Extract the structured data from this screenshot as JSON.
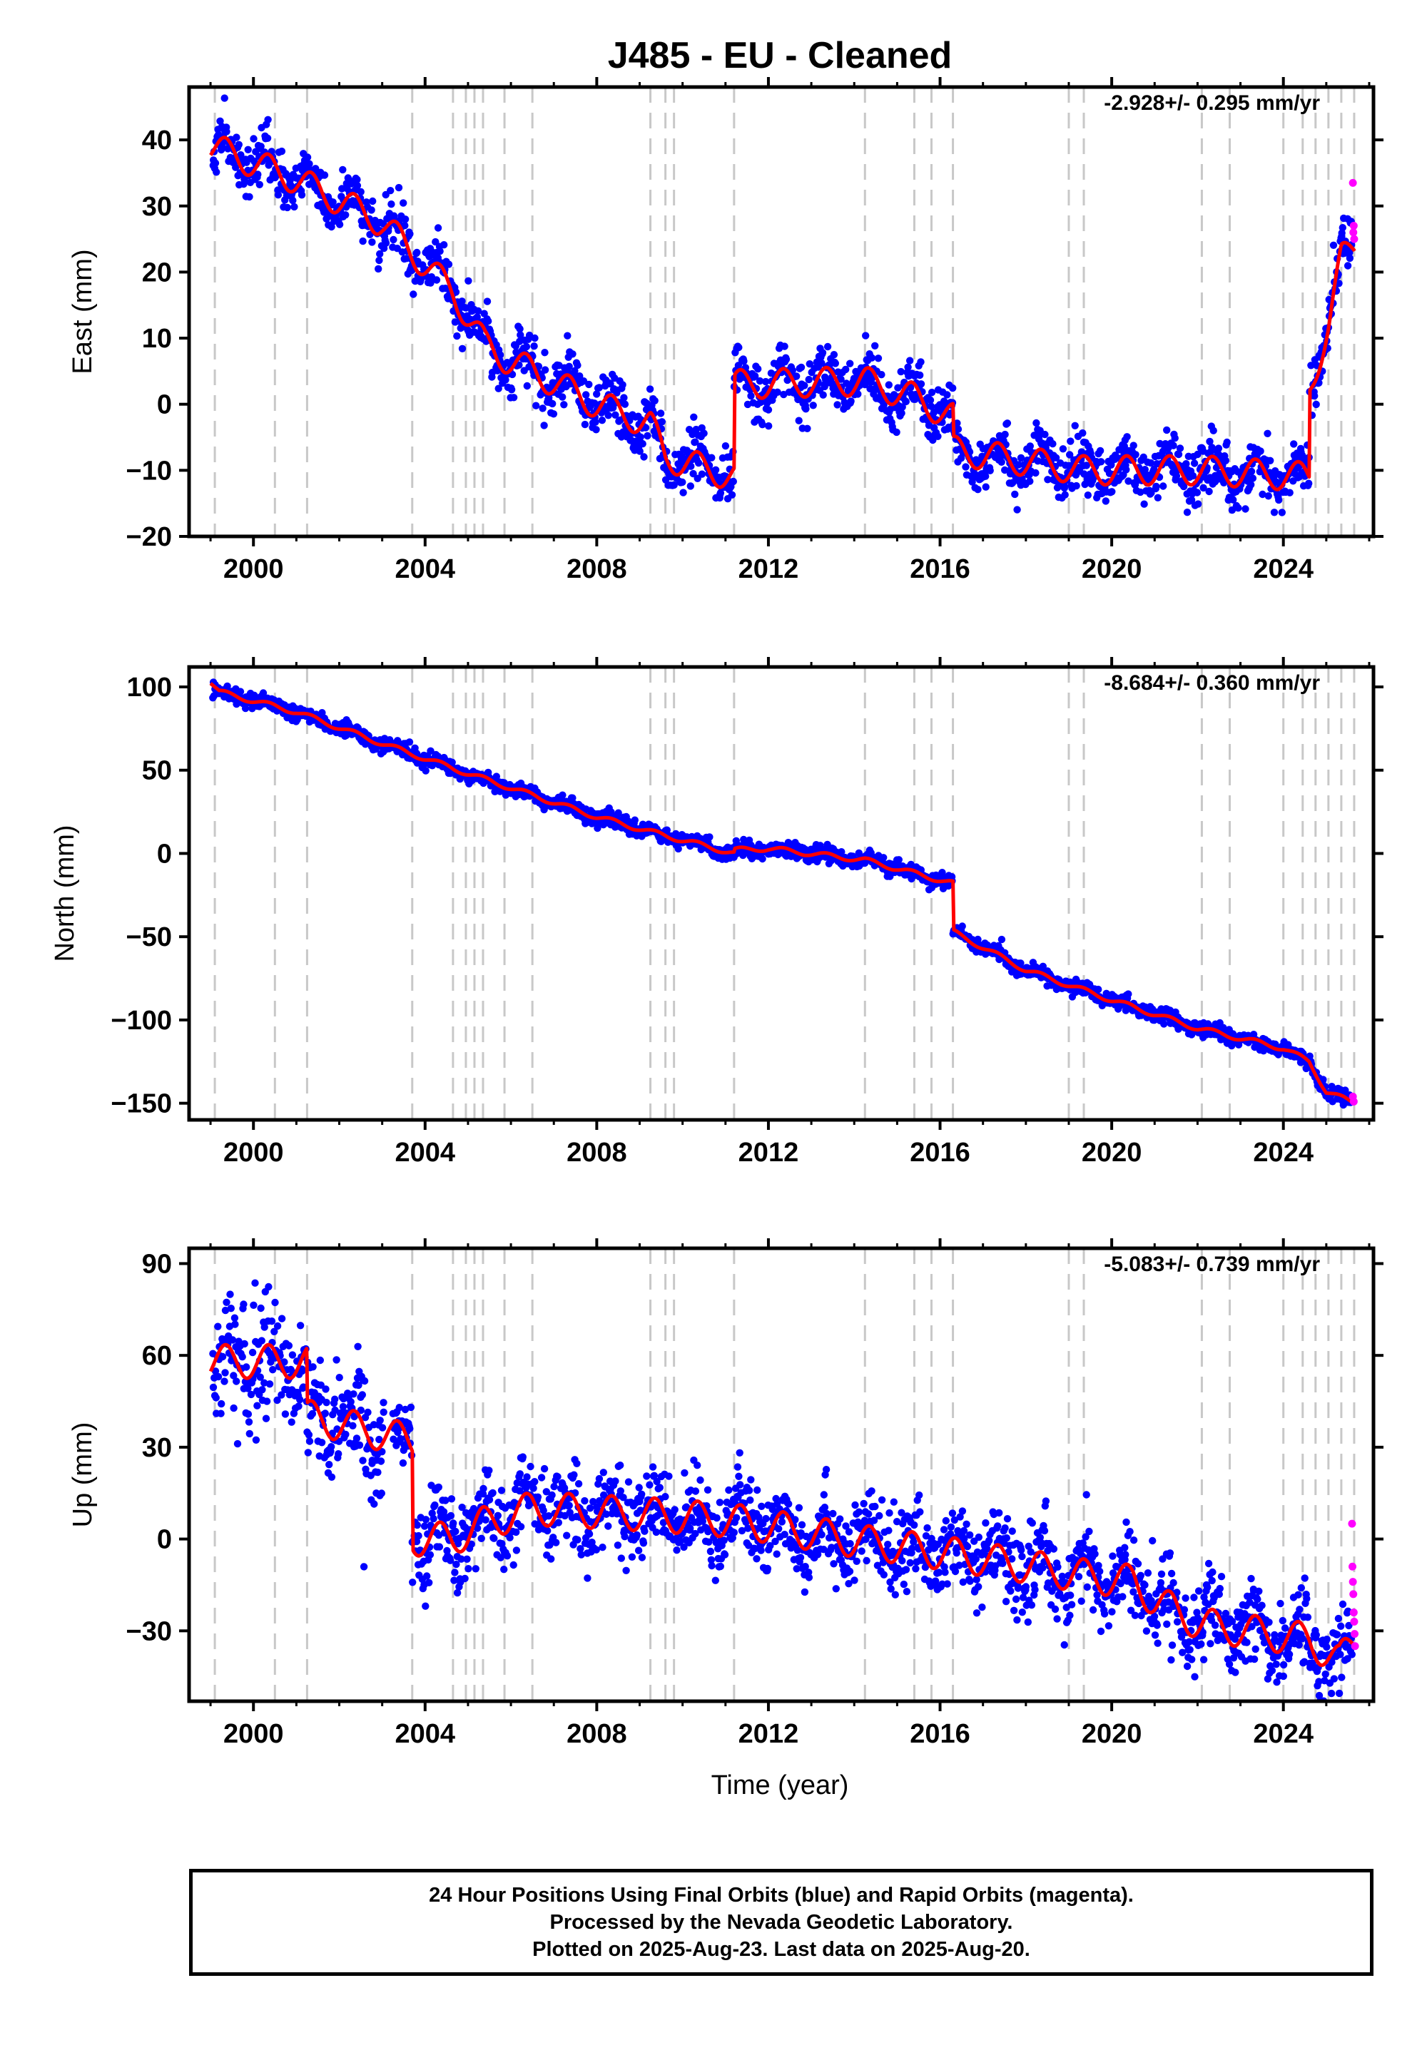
{
  "title": "J485  - EU - Cleaned",
  "x_axis_label": "Time (year)",
  "footer": {
    "line1": "24 Hour Positions Using Final Orbits (blue) and Rapid Orbits (magenta).",
    "line2": "Processed by the Nevada Geodetic Laboratory.",
    "line3": "Plotted on 2025-Aug-23. Last data on 2025-Aug-20."
  },
  "colors": {
    "final_orbits": "#0000ff",
    "rapid_orbits": "#ff00ff",
    "model": "#ff0000",
    "event_lines": "#c8c8c8"
  },
  "event_lines": [
    1999.1,
    2000.5,
    2001.25,
    2003.7,
    2004.65,
    2004.95,
    2005.15,
    2005.35,
    2005.85,
    2006.5,
    2009.25,
    2009.6,
    2009.8,
    2011.2,
    2014.25,
    2015.4,
    2015.8,
    2016.3,
    2019.0,
    2019.35,
    2022.1,
    2022.75,
    2024.0,
    2024.45,
    2024.75,
    2025.05,
    2025.35,
    2025.65
  ],
  "chart_data": [
    {
      "type": "scatter",
      "ylabel": "East (mm)",
      "rate_label": "-2.928+/- 0.295 mm/yr",
      "xlim": [
        1998.5,
        2026.1
      ],
      "ylim": [
        -20,
        48
      ],
      "x_ticks": [
        "2000",
        "2004",
        "2008",
        "2012",
        "2016",
        "2020",
        "2024"
      ],
      "y_ticks": [
        "40",
        "30",
        "20",
        "10",
        "0",
        "−10",
        "−20"
      ],
      "x_tick_values": [
        2000,
        2004,
        2008,
        2012,
        2016,
        2020,
        2024
      ],
      "y_tick_values": [
        40,
        30,
        20,
        10,
        0,
        -10,
        -20
      ],
      "grid": false,
      "scatter_sigma": 2.0,
      "model_series": {
        "name": "model",
        "trend": [
          [
            1999.0,
            39
          ],
          [
            2001.0,
            34
          ],
          [
            2003.0,
            27.5
          ],
          [
            2003.7,
            23
          ],
          [
            2004.65,
            17
          ],
          [
            2005.4,
            9
          ],
          [
            2005.85,
            7
          ],
          [
            2006.5,
            5
          ],
          [
            2008.0,
            0
          ],
          [
            2009.25,
            -3
          ],
          [
            2009.6,
            -8
          ],
          [
            2011.2,
            -11
          ],
          [
            2011.2,
            3
          ],
          [
            2014.25,
            3.5
          ],
          [
            2015.4,
            1
          ],
          [
            2016.3,
            -2
          ],
          [
            2016.3,
            -7
          ],
          [
            2019.35,
            -10
          ],
          [
            2022.1,
            -10
          ],
          [
            2024.6,
            -11
          ],
          [
            2024.6,
            2
          ],
          [
            2025.05,
            12
          ],
          [
            2025.35,
            22
          ],
          [
            2025.65,
            24
          ]
        ],
        "seasonal_amplitude": 2.2
      },
      "rapid_points": [
        [
          2025.62,
          33.5
        ],
        [
          2025.63,
          26
        ],
        [
          2025.64,
          27
        ],
        [
          2025.65,
          25
        ]
      ]
    },
    {
      "type": "scatter",
      "ylabel": "North (mm)",
      "rate_label": "-8.684+/- 0.360 mm/yr",
      "xlim": [
        1998.5,
        2026.1
      ],
      "ylim": [
        -160,
        112
      ],
      "x_ticks": [
        "2000",
        "2004",
        "2008",
        "2012",
        "2016",
        "2020",
        "2024"
      ],
      "y_ticks": [
        "100",
        "50",
        "0",
        "−50",
        "−100",
        "−150"
      ],
      "x_tick_values": [
        2000,
        2004,
        2008,
        2012,
        2016,
        2020,
        2024
      ],
      "y_tick_values": [
        100,
        50,
        0,
        -50,
        -100,
        -150
      ],
      "grid": false,
      "scatter_sigma": 2.2,
      "model_series": {
        "name": "model",
        "trend": [
          [
            1999.0,
            103
          ],
          [
            1999.2,
            97
          ],
          [
            2001.0,
            85
          ],
          [
            2003.0,
            66
          ],
          [
            2004.0,
            57
          ],
          [
            2005.0,
            48
          ],
          [
            2006.5,
            35
          ],
          [
            2008.0,
            22
          ],
          [
            2009.25,
            13
          ],
          [
            2011.2,
            0
          ],
          [
            2011.2,
            2
          ],
          [
            2012.0,
            3
          ],
          [
            2014.25,
            -4
          ],
          [
            2016.3,
            -18
          ],
          [
            2016.3,
            -47
          ],
          [
            2018.0,
            -70
          ],
          [
            2020.0,
            -88
          ],
          [
            2022.0,
            -105
          ],
          [
            2024.0,
            -117
          ],
          [
            2024.6,
            -125
          ],
          [
            2025.0,
            -143
          ],
          [
            2025.65,
            -150
          ]
        ],
        "seasonal_amplitude": 1.5
      },
      "rapid_points": [
        [
          2025.62,
          -146
        ],
        [
          2025.64,
          -149
        ]
      ]
    },
    {
      "type": "scatter",
      "ylabel": "Up (mm)",
      "rate_label": "-5.083+/- 0.739 mm/yr",
      "xlim": [
        1998.5,
        2026.1
      ],
      "ylim": [
        -53,
        95
      ],
      "x_ticks": [
        "2000",
        "2004",
        "2008",
        "2012",
        "2016",
        "2020",
        "2024"
      ],
      "y_ticks": [
        "90",
        "60",
        "30",
        "0",
        "−30"
      ],
      "x_tick_values": [
        2000,
        2004,
        2008,
        2012,
        2016,
        2020,
        2024
      ],
      "y_tick_values": [
        90,
        60,
        30,
        0,
        -30
      ],
      "grid": false,
      "scatter_sigma": 6.5,
      "model_series": {
        "name": "model",
        "trend": [
          [
            1999.0,
            58
          ],
          [
            2001.25,
            58
          ],
          [
            2001.25,
            40
          ],
          [
            2003.7,
            32
          ],
          [
            2003.7,
            0
          ],
          [
            2004.65,
            0
          ],
          [
            2005.35,
            5
          ],
          [
            2006.5,
            10
          ],
          [
            2009.25,
            8
          ],
          [
            2011.2,
            6
          ],
          [
            2014.25,
            -1
          ],
          [
            2016.3,
            -5
          ],
          [
            2019.35,
            -12
          ],
          [
            2020.5,
            -14
          ],
          [
            2021.0,
            -20
          ],
          [
            2022.1,
            -28
          ],
          [
            2024.6,
            -33
          ],
          [
            2025.3,
            -40
          ],
          [
            2025.65,
            -33
          ]
        ],
        "seasonal_amplitude": 5.5
      },
      "rapid_points": [
        [
          2025.6,
          5
        ],
        [
          2025.61,
          -9
        ],
        [
          2025.62,
          -14
        ],
        [
          2025.63,
          -18
        ],
        [
          2025.64,
          -24
        ],
        [
          2025.65,
          -27
        ],
        [
          2025.66,
          -31
        ],
        [
          2025.67,
          -35
        ]
      ]
    }
  ]
}
